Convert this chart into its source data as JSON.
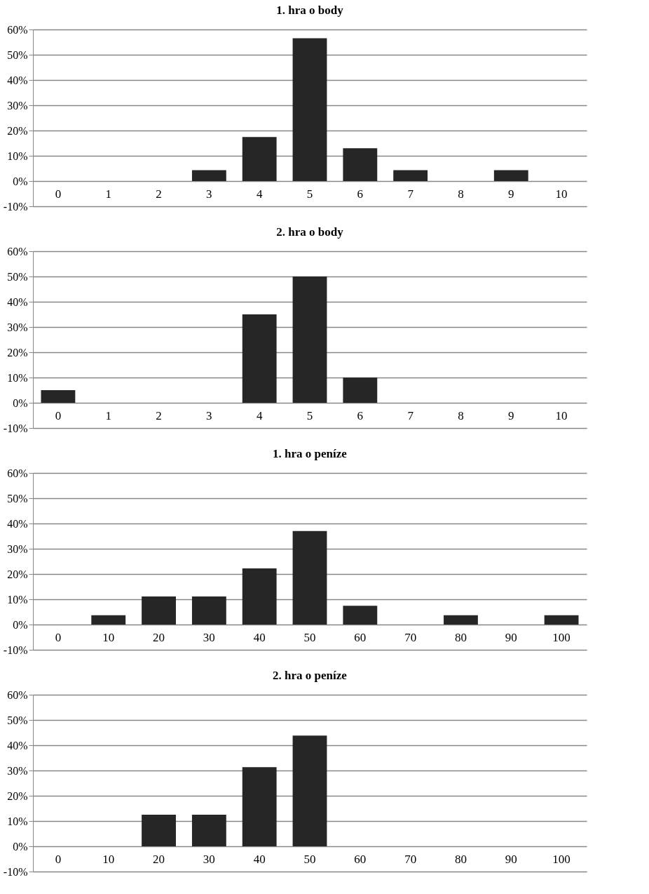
{
  "chart_data": [
    {
      "type": "bar",
      "title": "1. hra o body",
      "categories": [
        "0",
        "1",
        "2",
        "3",
        "4",
        "5",
        "6",
        "7",
        "8",
        "9",
        "10"
      ],
      "values": [
        0,
        0,
        0,
        4.3,
        17.4,
        56.5,
        13,
        4.3,
        0,
        4.3,
        0
      ],
      "color": "#262626",
      "ylim": [
        -10,
        60
      ],
      "yticks": [
        {
          "value": -10,
          "label": "-10%"
        },
        {
          "value": 0,
          "label": "0%"
        },
        {
          "value": 10,
          "label": "10%"
        },
        {
          "value": 20,
          "label": "20%"
        },
        {
          "value": 30,
          "label": "30%"
        },
        {
          "value": 40,
          "label": "40%"
        },
        {
          "value": 50,
          "label": "50%"
        },
        {
          "value": 60,
          "label": "60%"
        }
      ],
      "grid": "y"
    },
    {
      "type": "bar",
      "title": "2. hra o body",
      "categories": [
        "0",
        "1",
        "2",
        "3",
        "4",
        "5",
        "6",
        "7",
        "8",
        "9",
        "10"
      ],
      "values": [
        5,
        0,
        0,
        0,
        35,
        50,
        10,
        0,
        0,
        0,
        0
      ],
      "color": "#262626",
      "ylim": [
        -10,
        60
      ],
      "yticks": [
        {
          "value": -10,
          "label": "-10%"
        },
        {
          "value": 0,
          "label": "0%"
        },
        {
          "value": 10,
          "label": "10%"
        },
        {
          "value": 20,
          "label": "20%"
        },
        {
          "value": 30,
          "label": "30%"
        },
        {
          "value": 40,
          "label": "40%"
        },
        {
          "value": 50,
          "label": "50%"
        },
        {
          "value": 60,
          "label": "60%"
        }
      ],
      "grid": "y"
    },
    {
      "type": "bar",
      "title": "1. hra o peníze",
      "categories": [
        "0",
        "10",
        "20",
        "30",
        "40",
        "50",
        "60",
        "70",
        "80",
        "90",
        "100"
      ],
      "values": [
        0,
        3.7,
        11.1,
        11.1,
        22.2,
        37,
        7.4,
        0,
        3.7,
        0,
        3.7
      ],
      "color": "#262626",
      "ylim": [
        -10,
        60
      ],
      "yticks": [
        {
          "value": -10,
          "label": "-10%"
        },
        {
          "value": 0,
          "label": "0%"
        },
        {
          "value": 10,
          "label": "10%"
        },
        {
          "value": 20,
          "label": "20%"
        },
        {
          "value": 30,
          "label": "30%"
        },
        {
          "value": 40,
          "label": "40%"
        },
        {
          "value": 50,
          "label": "50%"
        },
        {
          "value": 60,
          "label": "60%"
        }
      ],
      "grid": "y"
    },
    {
      "type": "bar",
      "title": "2. hra o peníze",
      "categories": [
        "0",
        "10",
        "20",
        "30",
        "40",
        "50",
        "60",
        "70",
        "80",
        "90",
        "100"
      ],
      "values": [
        0,
        0,
        12.5,
        12.5,
        31.3,
        43.8,
        0,
        0,
        0,
        0,
        0
      ],
      "color": "#262626",
      "ylim": [
        -10,
        60
      ],
      "yticks": [
        {
          "value": -10,
          "label": "-10%"
        },
        {
          "value": 0,
          "label": "0%"
        },
        {
          "value": 10,
          "label": "10%"
        },
        {
          "value": 20,
          "label": "20%"
        },
        {
          "value": 30,
          "label": "30%"
        },
        {
          "value": 40,
          "label": "40%"
        },
        {
          "value": 50,
          "label": "50%"
        },
        {
          "value": 60,
          "label": "60%"
        }
      ],
      "grid": "y"
    }
  ]
}
